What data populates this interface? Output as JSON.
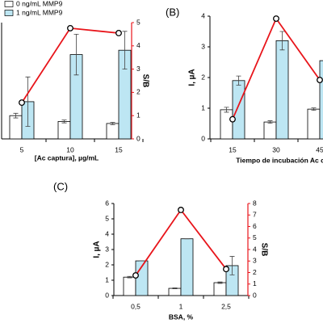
{
  "chart_data": [
    {
      "type": "bar",
      "legend": "upper left",
      "categories": [
        "5",
        "10",
        "15"
      ],
      "x_label": "[Ac captura], µg/mL",
      "y2_label": "S/B",
      "ylim": [
        0,
        4
      ],
      "y2lim": [
        0,
        5
      ],
      "y2ticks": [
        0,
        1,
        2,
        3,
        4,
        5
      ],
      "series": [
        {
          "name": "0 ng/mL MMP9",
          "color": "#ffffff",
          "values": [
            0.8,
            0.6,
            0.53
          ],
          "errors": [
            0.08,
            0.05,
            0.04
          ]
        },
        {
          "name": "1 ng/mL MMP9",
          "color": "#bde6f3",
          "values": [
            1.28,
            2.9,
            3.05
          ],
          "errors": [
            0.85,
            0.7,
            0.65
          ]
        },
        {
          "type": "line",
          "axis": "y2",
          "color": "#e8151b",
          "values": [
            1.56,
            4.76,
            4.55
          ]
        }
      ]
    },
    {
      "type": "bar",
      "panel_label": "(B)",
      "categories": [
        "15",
        "30",
        "45"
      ],
      "x_label": "Tiempo de incubación Ac captura",
      "y_label": "I, µA",
      "ylim": [
        0,
        4
      ],
      "yticks": [
        0,
        1,
        2,
        3,
        4
      ],
      "y2lim": [
        0,
        5
      ],
      "series": [
        {
          "color": "#ffffff",
          "values": [
            0.95,
            0.55,
            0.97
          ],
          "errors": [
            0.08,
            0.04,
            0.04
          ]
        },
        {
          "color": "#bde6f3",
          "values": [
            1.9,
            3.2,
            2.55
          ],
          "errors": [
            0.15,
            0.3,
            0.2
          ]
        },
        {
          "type": "line",
          "axis": "y2",
          "color": "#e8151b",
          "values": [
            0.8,
            4.9,
            2.4
          ]
        }
      ]
    },
    {
      "type": "bar",
      "panel_label": "(C)",
      "categories": [
        "0,5",
        "1",
        "2,5"
      ],
      "x_label": "BSA, %",
      "y_label": "I, µA",
      "y2_label": "S/B",
      "ylim": [
        0,
        6
      ],
      "yticks": [
        0,
        1,
        2,
        3,
        4,
        5,
        6
      ],
      "y2lim": [
        0,
        8
      ],
      "y2ticks": [
        0,
        1,
        2,
        3,
        4,
        5,
        6,
        7,
        8
      ],
      "series": [
        {
          "color": "#ffffff",
          "values": [
            1.2,
            0.47,
            0.84
          ],
          "errors": [
            0.05,
            0.03,
            0.05
          ]
        },
        {
          "color": "#bde6f3",
          "values": [
            2.26,
            3.7,
            1.95
          ],
          "errors": [
            0,
            0,
            0.6
          ]
        },
        {
          "type": "line",
          "axis": "y2",
          "color": "#e8151b",
          "values": [
            1.75,
            7.44,
            2.3
          ]
        }
      ]
    }
  ]
}
